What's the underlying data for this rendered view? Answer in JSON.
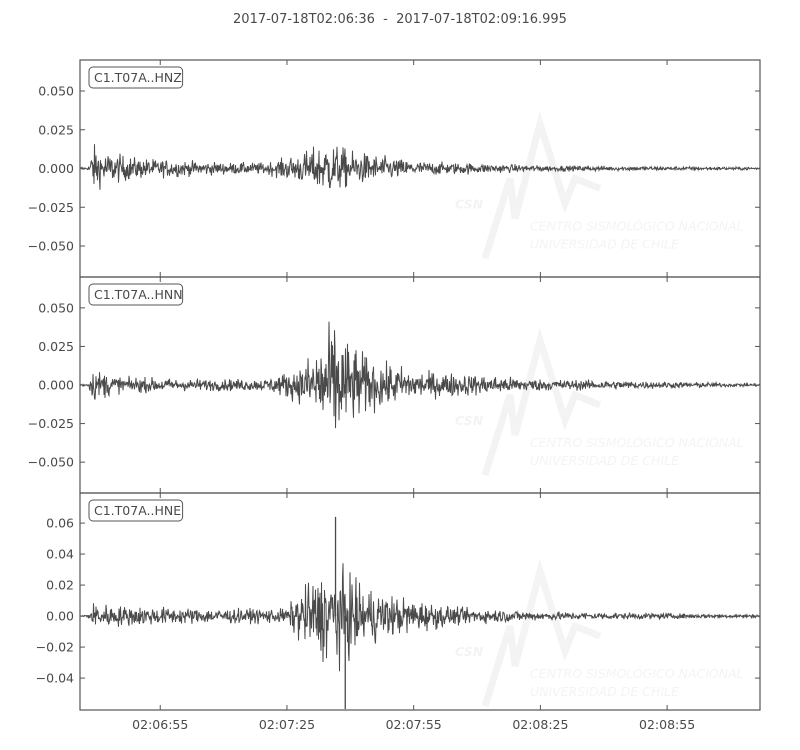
{
  "chart_data": {
    "type": "line",
    "title": "2017-07-18T02:06:36  -  2017-07-18T02:09:16.995",
    "x_range": [
      "02:06:36",
      "02:09:16.995"
    ],
    "x_ticks": [
      "02:06:55",
      "02:07:25",
      "02:07:55",
      "02:08:25",
      "02:08:55"
    ],
    "line_color": "#4a4a4a",
    "grid": false,
    "watermark": {
      "logo": "CSN",
      "line1": "CENTRO SISMOLÓGICO NACIONAL",
      "line2": "UNIVERSIDAD DE CHILE"
    },
    "panels": [
      {
        "name": "C1.T07A..HNZ",
        "ylim": [
          -0.07,
          0.07
        ],
        "y_ticks": [
          "0.050",
          "0.025",
          "0.000",
          "−0.025",
          "−0.050"
        ],
        "y_tick_values": [
          0.05,
          0.025,
          0,
          -0.025,
          -0.05
        ],
        "envelope": [
          [
            "02:06:36",
            0.001
          ],
          [
            "02:06:38",
            0.001
          ],
          [
            "02:06:39",
            0.016
          ],
          [
            "02:06:42",
            0.011
          ],
          [
            "02:06:50",
            0.007
          ],
          [
            "02:07:10",
            0.004
          ],
          [
            "02:07:20",
            0.004
          ],
          [
            "02:07:28",
            0.01
          ],
          [
            "02:07:35",
            0.018
          ],
          [
            "02:07:40",
            0.012
          ],
          [
            "02:07:55",
            0.005
          ],
          [
            "02:08:25",
            0.002
          ],
          [
            "02:09:17",
            0.001
          ]
        ],
        "spikes": []
      },
      {
        "name": "C1.T07A..HNN",
        "ylim": [
          -0.07,
          0.07
        ],
        "y_ticks": [
          "0.050",
          "0.025",
          "0.000",
          "−0.025",
          "−0.050"
        ],
        "y_tick_values": [
          0.05,
          0.025,
          0,
          -0.025,
          -0.05
        ],
        "envelope": [
          [
            "02:06:36",
            0.001
          ],
          [
            "02:06:38",
            0.001
          ],
          [
            "02:06:39",
            0.011
          ],
          [
            "02:06:45",
            0.006
          ],
          [
            "02:07:00",
            0.004
          ],
          [
            "02:07:20",
            0.004
          ],
          [
            "02:07:28",
            0.012
          ],
          [
            "02:07:33",
            0.03
          ],
          [
            "02:07:36",
            0.044
          ],
          [
            "02:07:40",
            0.028
          ],
          [
            "02:07:45",
            0.018
          ],
          [
            "02:07:55",
            0.01
          ],
          [
            "02:08:25",
            0.004
          ],
          [
            "02:09:17",
            0.001
          ]
        ],
        "spikes": []
      },
      {
        "name": "C1.T07A..HNE",
        "ylim": [
          -0.0606,
          0.0794
        ],
        "y_ticks": [
          "0.06",
          "0.04",
          "0.02",
          "0.00",
          "−0.02",
          "−0.04"
        ],
        "y_tick_values": [
          0.06,
          0.04,
          0.02,
          0,
          -0.02,
          -0.04
        ],
        "envelope": [
          [
            "02:06:36",
            0.001
          ],
          [
            "02:06:38",
            0.001
          ],
          [
            "02:06:39",
            0.009
          ],
          [
            "02:06:45",
            0.007
          ],
          [
            "02:07:05",
            0.005
          ],
          [
            "02:07:25",
            0.005
          ],
          [
            "02:07:28",
            0.018
          ],
          [
            "02:07:33",
            0.028
          ],
          [
            "02:07:37",
            0.036
          ],
          [
            "02:07:42",
            0.022
          ],
          [
            "02:07:50",
            0.014
          ],
          [
            "02:08:05",
            0.006
          ],
          [
            "02:08:25",
            0.003
          ],
          [
            "02:09:17",
            0.001
          ]
        ],
        "spikes": [
          [
            "02:07:36.5",
            0.064
          ],
          [
            "02:07:38.8",
            -0.06
          ]
        ]
      }
    ]
  }
}
